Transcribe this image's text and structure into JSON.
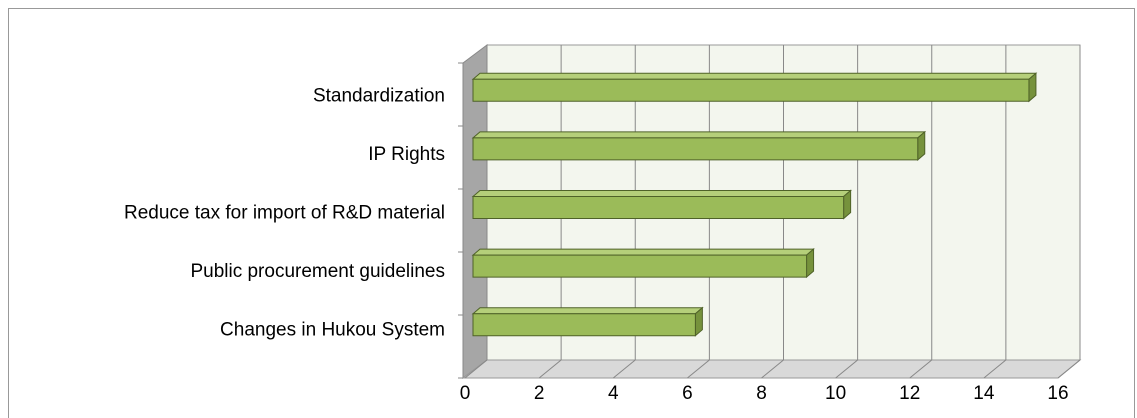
{
  "chart_data": {
    "type": "bar",
    "orientation": "horizontal",
    "categories": [
      "Standardization",
      "IP Rights",
      "Reduce tax for import of R&D material",
      "Public procurement guidelines",
      "Changes in Hukou System"
    ],
    "values": [
      15,
      12,
      10,
      9,
      6
    ],
    "color": "#9bbb59",
    "xlim": [
      0,
      16
    ],
    "xticks": [
      0,
      2,
      4,
      6,
      8,
      10,
      12,
      14,
      16
    ],
    "grid": true
  }
}
